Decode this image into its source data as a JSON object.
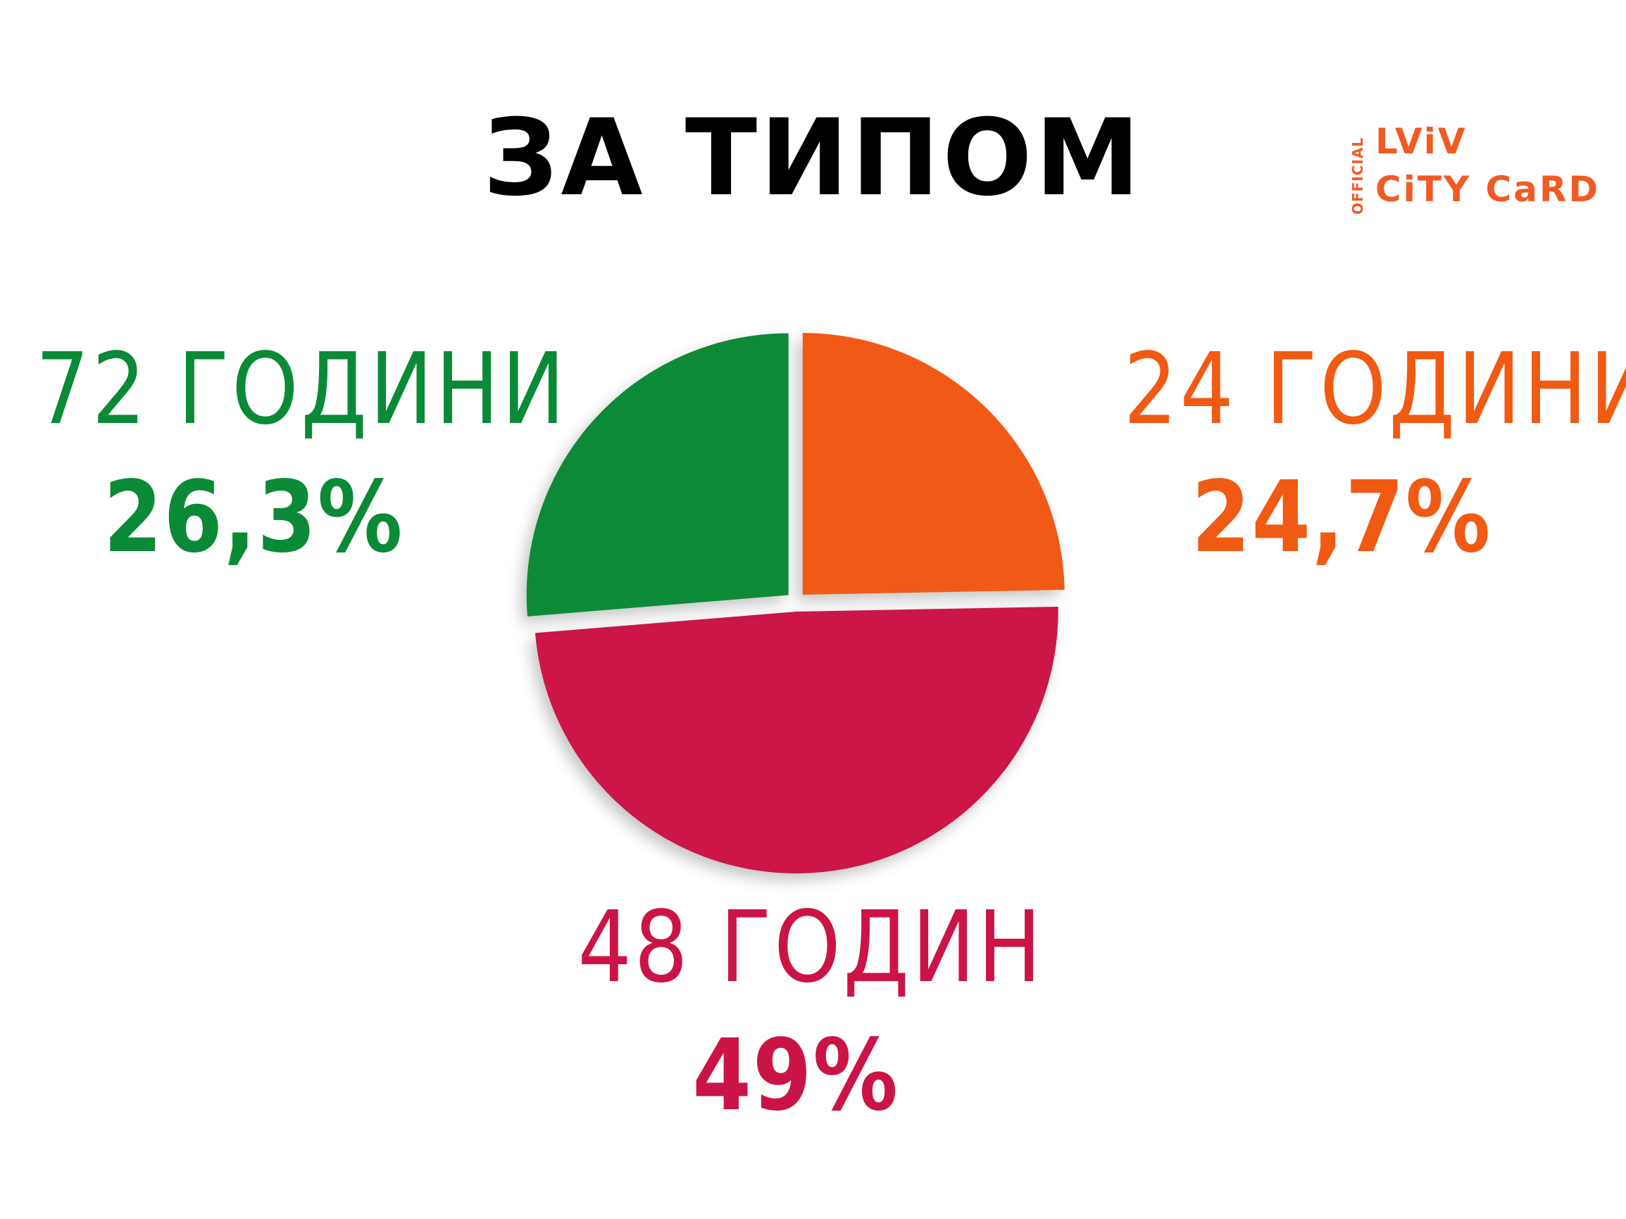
{
  "title": "ЗА ТИПОМ",
  "logo": {
    "side": "OFFICIAL",
    "line1": "LViV",
    "line2": "CiTY CaRD",
    "color": "#F15A24"
  },
  "chart_data": {
    "type": "pie",
    "title": "ЗА ТИПОМ",
    "slices": [
      {
        "label": "24 ГОДИНИ",
        "value": 24.7,
        "value_label": "24,7%",
        "color": "#F15A12"
      },
      {
        "label": "48 ГОДИН",
        "value": 49,
        "value_label": "49%",
        "color": "#CB1446"
      },
      {
        "label": "72 ГОДИНИ",
        "value": 26.3,
        "value_label": "26,3%",
        "color": "#0A8A37"
      }
    ]
  }
}
